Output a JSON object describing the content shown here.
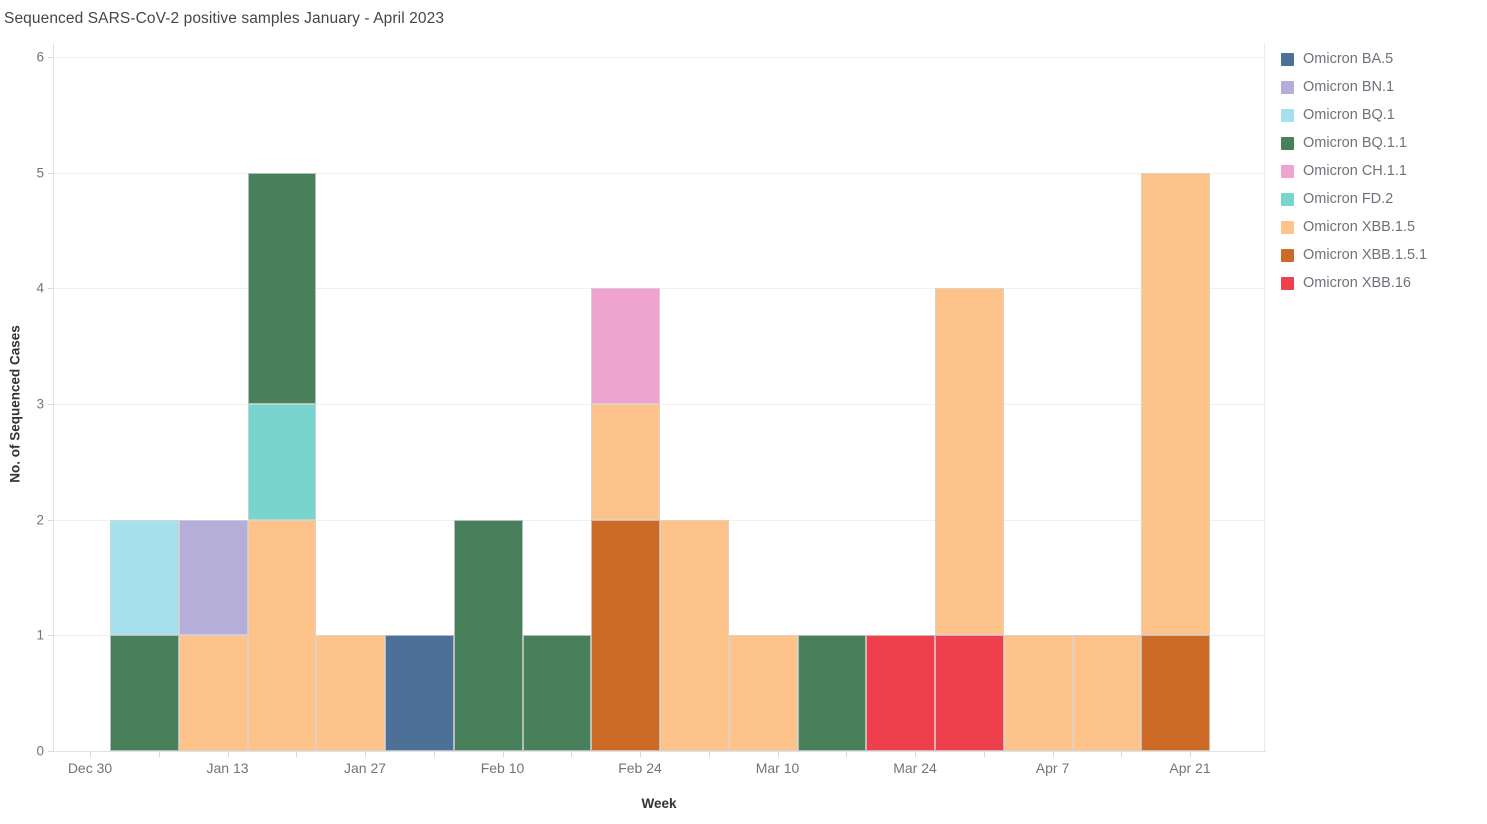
{
  "chart_data": {
    "type": "bar",
    "stacked": true,
    "title": "Sequenced SARS-CoV-2 positive samples January - April 2023",
    "xlabel": "Week",
    "ylabel": "No. of Sequenced Cases",
    "ylim": [
      0,
      6
    ],
    "yticks": [
      0,
      1,
      2,
      3,
      4,
      5,
      6
    ],
    "x_tick_labels": [
      "Dec 30",
      "Jan 13",
      "Jan 27",
      "Feb 10",
      "Feb 24",
      "Mar 10",
      "Mar 24",
      "Apr 7",
      "Apr 21"
    ],
    "grid": "horizontal",
    "legend_position": "right",
    "series": [
      {
        "name": "Omicron BA.5",
        "color": "#4d7099"
      },
      {
        "name": "Omicron BN.1",
        "color": "#b4aed8"
      },
      {
        "name": "Omicron BQ.1",
        "color": "#a5e0ec"
      },
      {
        "name": "Omicron BQ.1.1",
        "color": "#47805b"
      },
      {
        "name": "Omicron CH.1.1",
        "color": "#eea4cf"
      },
      {
        "name": "Omicron FD.2",
        "color": "#79d4cd"
      },
      {
        "name": "Omicron XBB.1.5",
        "color": "#fec28b"
      },
      {
        "name": "Omicron XBB.1.5.1",
        "color": "#cd6a27"
      },
      {
        "name": "Omicron XBB.16",
        "color": "#ee3f4d"
      }
    ],
    "bars": [
      {
        "week": "Jan 6",
        "segments": [
          {
            "series": "Omicron BQ.1.1",
            "value": 1
          },
          {
            "series": "Omicron BQ.1",
            "value": 1
          }
        ]
      },
      {
        "week": "Jan 13",
        "segments": [
          {
            "series": "Omicron XBB.1.5",
            "value": 1
          },
          {
            "series": "Omicron BN.1",
            "value": 1
          }
        ]
      },
      {
        "week": "Jan 20",
        "segments": [
          {
            "series": "Omicron XBB.1.5",
            "value": 2
          },
          {
            "series": "Omicron FD.2",
            "value": 1
          },
          {
            "series": "Omicron BQ.1.1",
            "value": 2
          }
        ]
      },
      {
        "week": "Jan 27",
        "segments": [
          {
            "series": "Omicron XBB.1.5",
            "value": 1
          }
        ]
      },
      {
        "week": "Feb 3",
        "segments": [
          {
            "series": "Omicron BA.5",
            "value": 1
          }
        ]
      },
      {
        "week": "Feb 10",
        "segments": [
          {
            "series": "Omicron BQ.1.1",
            "value": 2
          }
        ]
      },
      {
        "week": "Feb 17",
        "segments": [
          {
            "series": "Omicron BQ.1.1",
            "value": 1
          }
        ]
      },
      {
        "week": "Feb 24",
        "segments": [
          {
            "series": "Omicron XBB.1.5.1",
            "value": 2
          },
          {
            "series": "Omicron XBB.1.5",
            "value": 1
          },
          {
            "series": "Omicron CH.1.1",
            "value": 1
          }
        ]
      },
      {
        "week": "Mar 3",
        "segments": [
          {
            "series": "Omicron XBB.1.5",
            "value": 2
          }
        ]
      },
      {
        "week": "Mar 10",
        "segments": [
          {
            "series": "Omicron XBB.1.5",
            "value": 1
          }
        ]
      },
      {
        "week": "Mar 17",
        "segments": [
          {
            "series": "Omicron BQ.1.1",
            "value": 1
          }
        ]
      },
      {
        "week": "Mar 24",
        "segments": [
          {
            "series": "Omicron XBB.16",
            "value": 1
          }
        ]
      },
      {
        "week": "Mar 31",
        "segments": [
          {
            "series": "Omicron XBB.16",
            "value": 1
          },
          {
            "series": "Omicron XBB.1.5",
            "value": 3
          }
        ]
      },
      {
        "week": "Apr 7",
        "segments": [
          {
            "series": "Omicron XBB.1.5",
            "value": 1
          }
        ]
      },
      {
        "week": "Apr 14",
        "segments": [
          {
            "series": "Omicron XBB.1.5",
            "value": 1
          }
        ]
      },
      {
        "week": "Apr 21",
        "segments": [
          {
            "series": "Omicron XBB.1.5.1",
            "value": 1
          },
          {
            "series": "Omicron XBB.1.5",
            "value": 4
          }
        ]
      }
    ]
  },
  "colors": {
    "background": "#ffffff",
    "gridline": "#f0f0f0",
    "axis_line": "#e2e2e2",
    "tick_mark": "#d8d8d8",
    "tick_label": "#70757c",
    "axis_title": "#333333",
    "title_text": "#464646",
    "legend_text": "#6e737b"
  }
}
